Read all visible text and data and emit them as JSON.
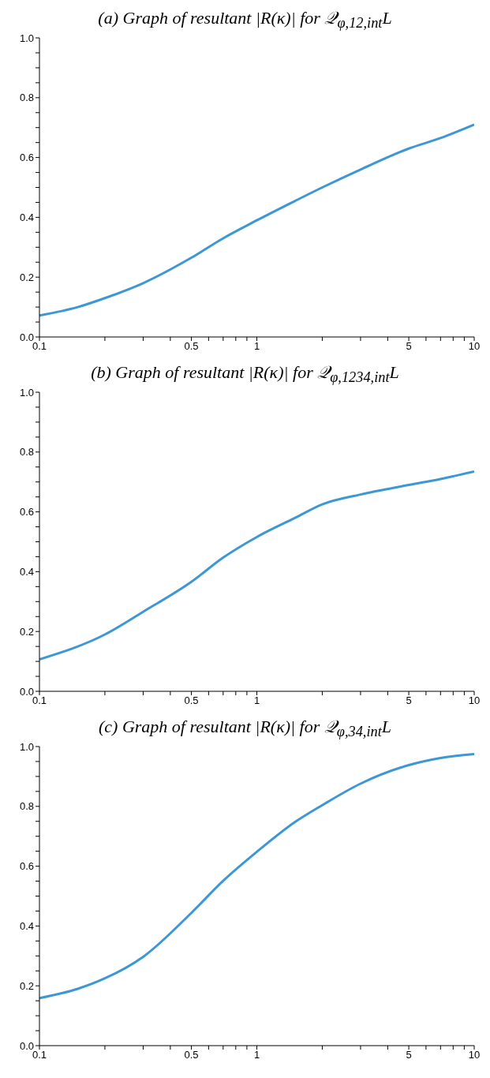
{
  "chart_data": [
    {
      "type": "line",
      "title": "(a) Graph of resultant |R(κ)| for 𝒬$_{φ,12,int}$L",
      "x": [
        0.1,
        0.15,
        0.2,
        0.3,
        0.5,
        0.7,
        1,
        1.5,
        2,
        3,
        5,
        7,
        10
      ],
      "series": [
        {
          "color": "#3d97d3",
          "values": [
            0.072,
            0.1,
            0.13,
            0.18,
            0.265,
            0.33,
            0.39,
            0.455,
            0.5,
            0.56,
            0.63,
            0.665,
            0.71
          ]
        }
      ],
      "log": "x",
      "xlim": [
        0.1,
        10
      ],
      "xticks": [
        0.1,
        {
          "value": 0.2,
          "label": null
        },
        {
          "value": 0.3,
          "label": null
        },
        {
          "value": 0.4,
          "label": null
        },
        0.5,
        {
          "value": 0.6,
          "label": null
        },
        {
          "value": 0.7,
          "label": null
        },
        {
          "value": 0.8,
          "label": null
        },
        {
          "value": 0.9,
          "label": null
        },
        1,
        {
          "value": 2,
          "label": null
        },
        {
          "value": 3,
          "label": null
        },
        {
          "value": 4,
          "label": null
        },
        5,
        {
          "value": 6,
          "label": null
        },
        {
          "value": 7,
          "label": null
        },
        {
          "value": 8,
          "label": null
        },
        {
          "value": 9,
          "label": null
        },
        10
      ],
      "ylim": [
        0,
        1
      ],
      "yticks": [
        {
          "value": 0,
          "label": "0.0"
        },
        {
          "value": 0.05,
          "label": null
        },
        {
          "value": 0.1,
          "label": null
        },
        {
          "value": 0.15,
          "label": null
        },
        0.2,
        {
          "value": 0.25,
          "label": null
        },
        {
          "value": 0.3,
          "label": null
        },
        {
          "value": 0.35,
          "label": null
        },
        0.4,
        {
          "value": 0.45,
          "label": null
        },
        {
          "value": 0.5,
          "label": null
        },
        {
          "value": 0.55,
          "label": null
        },
        0.6,
        {
          "value": 0.65,
          "label": null
        },
        {
          "value": 0.7,
          "label": null
        },
        {
          "value": 0.75,
          "label": null
        },
        0.8,
        {
          "value": 0.85,
          "label": null
        },
        {
          "value": 0.9,
          "label": null
        },
        {
          "value": 0.95,
          "label": null
        },
        {
          "value": 1,
          "label": "1.0"
        }
      ],
      "marker": "none",
      "line_style": "solid",
      "grid": false,
      "legend": false
    },
    {
      "type": "line",
      "title": "(b) Graph of resultant |R(κ)| for 𝒬$_{φ,1234,int}$L",
      "x": [
        0.1,
        0.2,
        0.3,
        0.5,
        0.7,
        1,
        1.5,
        2,
        3,
        5,
        7,
        10
      ],
      "series": [
        {
          "color": "#3d97d3",
          "values": [
            0.107,
            0.19,
            0.266,
            0.366,
            0.447,
            0.516,
            0.58,
            0.625,
            0.658,
            0.69,
            0.71,
            0.735
          ]
        }
      ],
      "log": "x",
      "xlim": [
        0.1,
        10
      ],
      "xticks": [
        0.1,
        {
          "value": 0.2,
          "label": null
        },
        {
          "value": 0.3,
          "label": null
        },
        {
          "value": 0.4,
          "label": null
        },
        0.5,
        {
          "value": 0.6,
          "label": null
        },
        {
          "value": 0.7,
          "label": null
        },
        {
          "value": 0.8,
          "label": null
        },
        {
          "value": 0.9,
          "label": null
        },
        1,
        {
          "value": 2,
          "label": null
        },
        {
          "value": 3,
          "label": null
        },
        {
          "value": 4,
          "label": null
        },
        5,
        {
          "value": 6,
          "label": null
        },
        {
          "value": 7,
          "label": null
        },
        {
          "value": 8,
          "label": null
        },
        {
          "value": 9,
          "label": null
        },
        10
      ],
      "ylim": [
        0,
        1
      ],
      "yticks": [
        {
          "value": 0,
          "label": "0.0"
        },
        {
          "value": 0.05,
          "label": null
        },
        {
          "value": 0.1,
          "label": null
        },
        {
          "value": 0.15,
          "label": null
        },
        0.2,
        {
          "value": 0.25,
          "label": null
        },
        {
          "value": 0.3,
          "label": null
        },
        {
          "value": 0.35,
          "label": null
        },
        0.4,
        {
          "value": 0.45,
          "label": null
        },
        {
          "value": 0.5,
          "label": null
        },
        {
          "value": 0.55,
          "label": null
        },
        0.6,
        {
          "value": 0.65,
          "label": null
        },
        {
          "value": 0.7,
          "label": null
        },
        {
          "value": 0.75,
          "label": null
        },
        0.8,
        {
          "value": 0.85,
          "label": null
        },
        {
          "value": 0.9,
          "label": null
        },
        {
          "value": 0.95,
          "label": null
        },
        {
          "value": 1,
          "label": "1.0"
        }
      ],
      "marker": "none",
      "line_style": "solid",
      "grid": false,
      "legend": false
    },
    {
      "type": "line",
      "title": "(c) Graph of resultant |R(κ)| for 𝒬$_{φ,34,int}$L",
      "x": [
        0.1,
        0.15,
        0.2,
        0.3,
        0.5,
        0.7,
        1,
        1.5,
        2,
        3,
        5,
        7,
        10
      ],
      "series": [
        {
          "color": "#3d97d3",
          "values": [
            0.159,
            0.19,
            0.225,
            0.297,
            0.444,
            0.551,
            0.648,
            0.748,
            0.804,
            0.876,
            0.938,
            0.962,
            0.975
          ]
        }
      ],
      "log": "x",
      "xlim": [
        0.1,
        10
      ],
      "xticks": [
        0.1,
        {
          "value": 0.2,
          "label": null
        },
        {
          "value": 0.3,
          "label": null
        },
        {
          "value": 0.4,
          "label": null
        },
        0.5,
        {
          "value": 0.6,
          "label": null
        },
        {
          "value": 0.7,
          "label": null
        },
        {
          "value": 0.8,
          "label": null
        },
        {
          "value": 0.9,
          "label": null
        },
        1,
        {
          "value": 2,
          "label": null
        },
        {
          "value": 3,
          "label": null
        },
        {
          "value": 4,
          "label": null
        },
        5,
        {
          "value": 6,
          "label": null
        },
        {
          "value": 7,
          "label": null
        },
        {
          "value": 8,
          "label": null
        },
        {
          "value": 9,
          "label": null
        },
        10
      ],
      "ylim": [
        0,
        1
      ],
      "yticks": [
        {
          "value": 0,
          "label": "0.0"
        },
        {
          "value": 0.05,
          "label": null
        },
        {
          "value": 0.1,
          "label": null
        },
        {
          "value": 0.15,
          "label": null
        },
        0.2,
        {
          "value": 0.25,
          "label": null
        },
        {
          "value": 0.3,
          "label": null
        },
        {
          "value": 0.35,
          "label": null
        },
        0.4,
        {
          "value": 0.45,
          "label": null
        },
        {
          "value": 0.5,
          "label": null
        },
        {
          "value": 0.55,
          "label": null
        },
        0.6,
        {
          "value": 0.65,
          "label": null
        },
        {
          "value": 0.7,
          "label": null
        },
        {
          "value": 0.75,
          "label": null
        },
        0.8,
        {
          "value": 0.85,
          "label": null
        },
        {
          "value": 0.9,
          "label": null
        },
        {
          "value": 0.95,
          "label": null
        },
        {
          "value": 1,
          "label": "1.0"
        }
      ],
      "marker": "none",
      "line_style": "solid",
      "grid": false,
      "legend": false
    }
  ]
}
